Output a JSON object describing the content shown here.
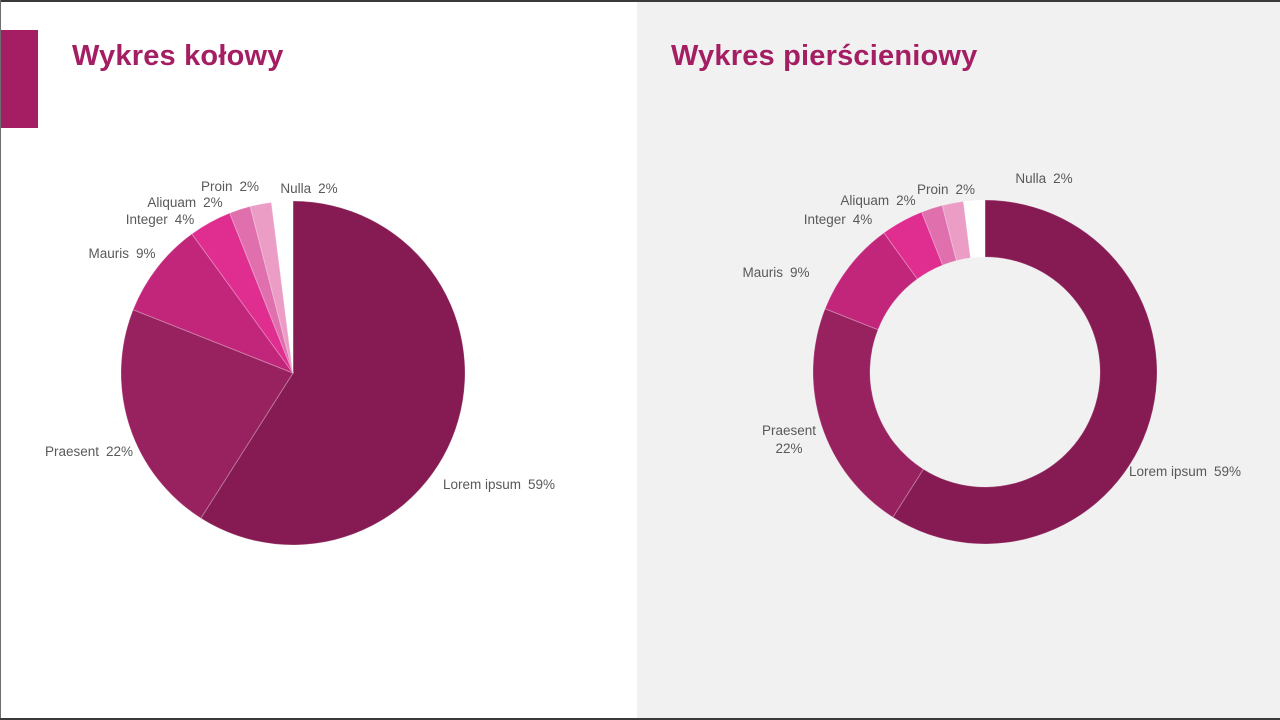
{
  "page": {
    "left_title": "Wykres kołowy",
    "right_title": "Wykres pierścieniowy",
    "title_color": "#A41E63",
    "accent_bar_color": "#A51E63",
    "left_bg": "#FFFFFF",
    "right_bg": "#F1F1F2",
    "edge_border_color": "#3A3A3A",
    "left_edge_color": "#6E6E6E",
    "label_color": "#595959"
  },
  "chart_data": [
    {
      "type": "pie",
      "title": "Wykres kołowy",
      "categories": [
        "Lorem ipsum",
        "Praesent",
        "Mauris",
        "Integer",
        "Aliquam",
        "Proin",
        "Nulla"
      ],
      "values": [
        59,
        22,
        9,
        4,
        2,
        2,
        2
      ],
      "unit": "%",
      "colors": [
        "#861A52",
        "#98215F",
        "#C1267B",
        "#E02D90",
        "#E06FAD",
        "#EB9DC6",
        "#FFFFFF"
      ],
      "start_angle_deg": 0,
      "direction": "clockwise",
      "labels_outside": true,
      "legend": "none"
    },
    {
      "type": "donut",
      "title": "Wykres pierścieniowy",
      "categories": [
        "Lorem ipsum",
        "Praesent",
        "Mauris",
        "Integer",
        "Aliquam",
        "Proin",
        "Nulla"
      ],
      "values": [
        59,
        22,
        9,
        4,
        2,
        2,
        2
      ],
      "unit": "%",
      "colors": [
        "#861A52",
        "#98215F",
        "#C1267B",
        "#E02D90",
        "#E06FAD",
        "#EB9DC6",
        "#FFFFFF"
      ],
      "start_angle_deg": 0,
      "direction": "clockwise",
      "hole_ratio": 0.67,
      "labels_outside": true,
      "legend": "none"
    }
  ]
}
